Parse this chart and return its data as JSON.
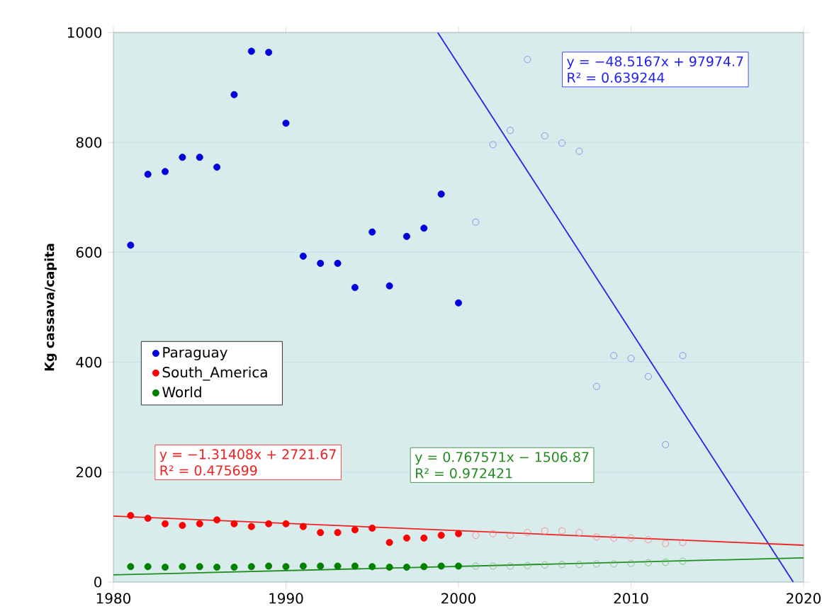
{
  "chart_data": {
    "type": "scatter",
    "ylabel": "Kg cassava/capita",
    "x": [
      1981,
      1982,
      1983,
      1984,
      1985,
      1986,
      1987,
      1988,
      1989,
      1990,
      1991,
      1992,
      1993,
      1994,
      1995,
      1996,
      1997,
      1998,
      1999,
      2000
    ],
    "series": [
      {
        "name": "Paraguay",
        "color": "#0000dd",
        "values": [
          613,
          742,
          747,
          773,
          773,
          755,
          887,
          966,
          964,
          835,
          593,
          580,
          580,
          536,
          637,
          539,
          629,
          644,
          706,
          508
        ]
      },
      {
        "name": "South_America",
        "color": "#ff0000",
        "values": [
          121,
          116,
          106,
          103,
          106,
          113,
          106,
          101,
          106,
          106,
          101,
          90,
          90,
          95,
          98,
          72,
          80,
          80,
          85,
          88
        ]
      },
      {
        "name": "World",
        "color": "#008000",
        "values": [
          28,
          28,
          27,
          28,
          28,
          27,
          27,
          28,
          29,
          28,
          29,
          29,
          29,
          29,
          28,
          27,
          27,
          28,
          29,
          29
        ]
      },
      {
        "color": "#7777ee",
        "x": [
          2001,
          2002,
          2003,
          2004,
          2005,
          2006,
          2007,
          2008,
          2009,
          2010,
          2011,
          2012,
          2013
        ],
        "values": [
          655,
          796,
          822,
          951,
          812,
          799,
          784,
          356,
          412,
          407,
          374,
          250,
          412
        ]
      },
      {
        "color": "#ff7777",
        "x": [
          2001,
          2002,
          2003,
          2004,
          2005,
          2006,
          2007,
          2008,
          2009,
          2010,
          2011,
          2012,
          2013
        ],
        "values": [
          85,
          88,
          85,
          90,
          93,
          93,
          90,
          82,
          80,
          80,
          77,
          70,
          72
        ]
      },
      {
        "color": "#66bb66",
        "x": [
          2001,
          2002,
          2003,
          2004,
          2005,
          2006,
          2007,
          2008,
          2009,
          2010,
          2011,
          2012,
          2013
        ],
        "values": [
          29,
          29,
          29,
          30,
          31,
          32,
          32,
          33,
          33,
          34,
          35,
          36,
          38
        ]
      },
      {
        "type": "line",
        "marker": "none",
        "color": "#2222ee",
        "x": [
          1998.8,
          2019.4
        ],
        "values": [
          1000,
          0
        ]
      },
      {
        "type": "line",
        "marker": "none",
        "color": "#ee2222",
        "x": [
          1980,
          2020
        ],
        "values": [
          120,
          67
        ]
      },
      {
        "type": "line",
        "marker": "none",
        "color": "#228b22",
        "x": [
          1980,
          2020
        ],
        "values": [
          13,
          44
        ]
      }
    ],
    "annotations": [
      "y = −48.5167x + 97974.7",
      "R² = 0.639244",
      "y = −1.31408x + 2721.67",
      "R² = 0.475699",
      "y = 0.767571x − 1506.87",
      "R² = 0.972421"
    ],
    "xlim": [
      1980,
      2020
    ],
    "xticks": [
      1980,
      1990,
      2000,
      2010,
      2020
    ],
    "ylim": [
      0,
      1000
    ],
    "yticks": [
      0,
      200,
      400,
      600,
      800,
      1000
    ],
    "grid": "y",
    "legend": "left",
    "marker": "circle"
  }
}
